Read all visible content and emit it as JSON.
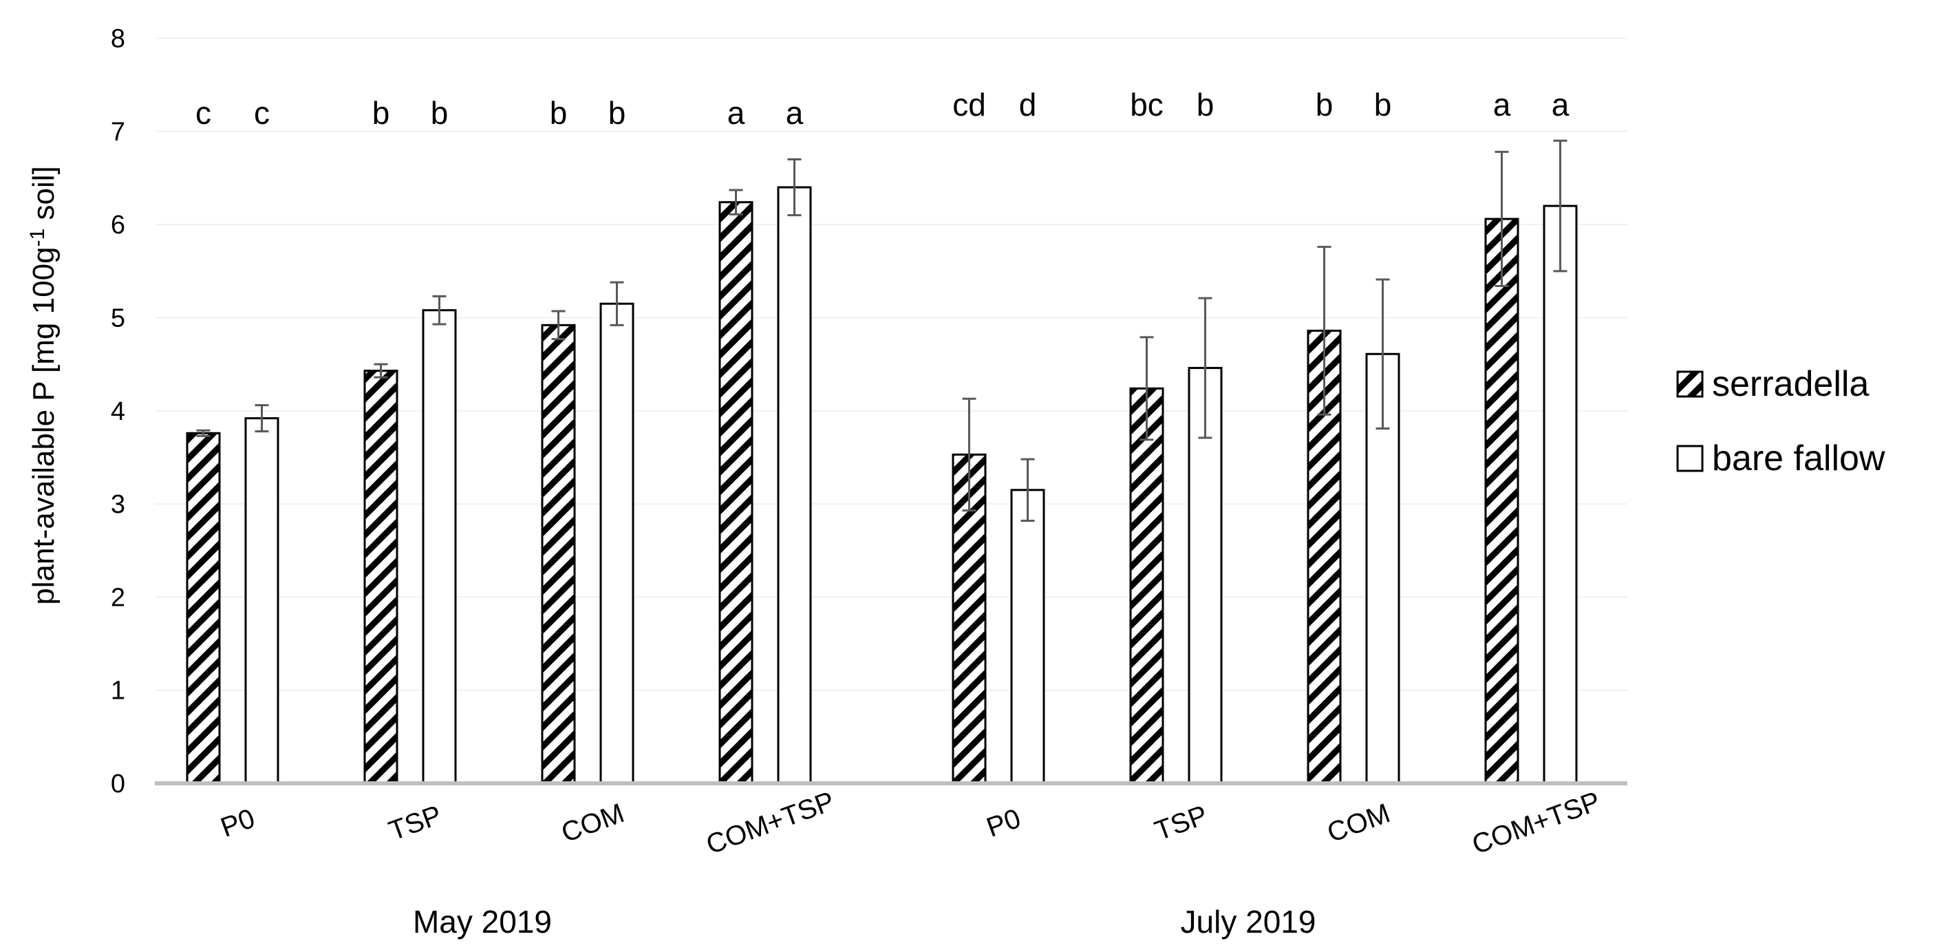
{
  "chart_data": {
    "type": "bar",
    "title": "",
    "xlabel": "",
    "ylabel_main": "plant-available P [mg 100g",
    "ylabel_sup": "-1",
    "ylabel_tail": " soil]",
    "ylim": [
      0,
      8
    ],
    "yticks": [
      "0",
      "1",
      "2",
      "3",
      "4",
      "5",
      "6",
      "7",
      "8"
    ],
    "grid": true,
    "legend_position": "right",
    "groups": [
      {
        "label": "May 2019",
        "categories": [
          "P0",
          "TSP",
          "COM",
          "COM+TSP"
        ],
        "series": [
          {
            "name": "serradella",
            "values": [
              3.76,
              4.43,
              4.92,
              6.24
            ],
            "errors": [
              0.03,
              0.07,
              0.15,
              0.13
            ],
            "letters": [
              "c",
              "b",
              "b",
              "a"
            ]
          },
          {
            "name": "bare fallow",
            "values": [
              3.92,
              5.08,
              5.15,
              6.4
            ],
            "errors": [
              0.14,
              0.15,
              0.23,
              0.3
            ],
            "letters": [
              "c",
              "b",
              "b",
              "a"
            ]
          }
        ]
      },
      {
        "label": "July 2019",
        "categories": [
          "P0",
          "TSP",
          "COM",
          "COM+TSP"
        ],
        "series": [
          {
            "name": "serradella",
            "values": [
              3.53,
              4.24,
              4.86,
              6.06
            ],
            "errors": [
              0.6,
              0.55,
              0.9,
              0.72
            ],
            "letters": [
              "cd",
              "bc",
              "b",
              "a"
            ]
          },
          {
            "name": "bare fallow",
            "values": [
              3.15,
              4.46,
              4.61,
              6.2
            ],
            "errors": [
              0.33,
              0.75,
              0.8,
              0.7
            ],
            "letters": [
              "d",
              "b",
              "b",
              "a"
            ]
          }
        ]
      }
    ],
    "legend": [
      {
        "name": "serradella",
        "pattern": "hatched"
      },
      {
        "name": "bare fallow",
        "pattern": "empty"
      }
    ],
    "colors": {
      "bar_stroke": "#000000",
      "hatch": "#000000",
      "bar_fill": "#ffffff",
      "axis": "#bfbfbf",
      "grid": "#f0f0f0",
      "error_bar": "#595959"
    }
  }
}
